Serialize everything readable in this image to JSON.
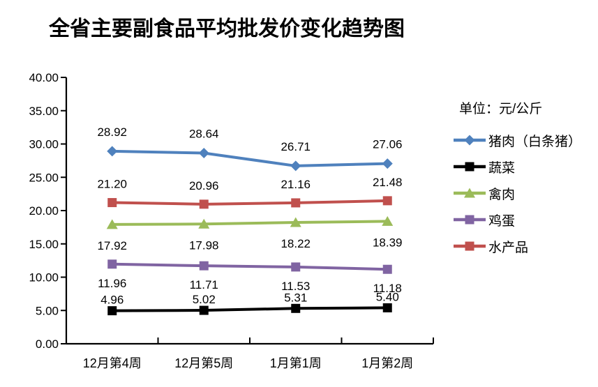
{
  "chart_data": {
    "type": "line",
    "title": "全省主要副食品平均批发价变化趋势图",
    "unit_label": "单位：元/公斤",
    "categories": [
      "12月第4周",
      "12月第5周",
      "1月第1周",
      "1月第2周"
    ],
    "series": [
      {
        "name": "猪肉（白条猪）",
        "color": "#4F81BD",
        "marker": "diamond",
        "values": [
          28.92,
          28.64,
          26.71,
          27.06
        ],
        "label_position": "above",
        "label_dy": -22
      },
      {
        "name": "蔬菜",
        "color": "#000000",
        "marker": "square",
        "values": [
          4.96,
          5.02,
          5.31,
          5.4
        ],
        "label_position": "above",
        "label_dy": -10
      },
      {
        "name": "禽肉",
        "color": "#9BBB59",
        "marker": "triangle",
        "values": [
          17.92,
          17.98,
          18.22,
          18.39
        ],
        "label_position": "below",
        "label_dy": 36
      },
      {
        "name": "鸡蛋",
        "color": "#8064A2",
        "marker": "square",
        "values": [
          11.96,
          11.71,
          11.53,
          11.18
        ],
        "label_position": "below",
        "label_dy": 33
      },
      {
        "name": "水产品",
        "color": "#C0504D",
        "marker": "square",
        "values": [
          21.2,
          20.96,
          21.16,
          21.48
        ],
        "label_position": "above",
        "label_dy": -21
      }
    ],
    "ylim": [
      0,
      40
    ],
    "ytick_step": 5,
    "ytick_decimals": 2,
    "data_label_decimals": 2,
    "grid": false,
    "legend_position": "right",
    "axis_color": "#000000",
    "label_color": "#000000",
    "background": "#FFFFFF"
  }
}
